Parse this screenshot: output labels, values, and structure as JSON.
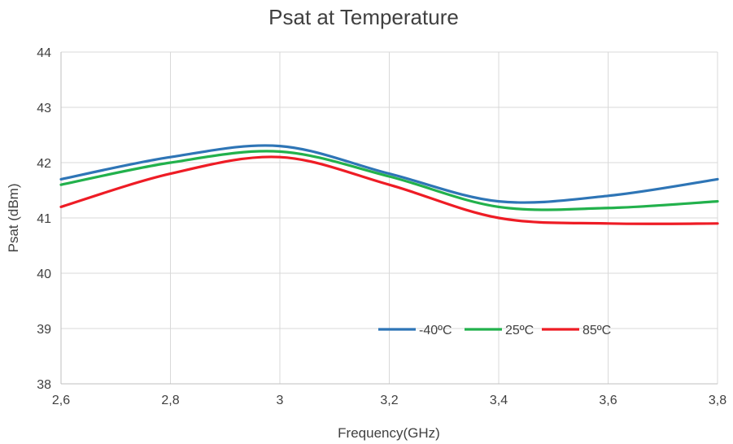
{
  "chart_data": {
    "type": "line",
    "title": "Psat at Temperature",
    "xlabel": "Frequency(GHz)",
    "ylabel": "Psat (dBm)",
    "xlim": [
      2.6,
      3.8
    ],
    "ylim": [
      38,
      44
    ],
    "x_ticks": [
      "2,6",
      "2,8",
      "3",
      "3,2",
      "3,4",
      "3,6",
      "3,8"
    ],
    "y_ticks": [
      "38",
      "39",
      "40",
      "41",
      "42",
      "43",
      "44"
    ],
    "grid": true,
    "legend_position": "lower-right",
    "x": [
      2.6,
      2.8,
      3.0,
      3.2,
      3.4,
      3.6,
      3.8
    ],
    "series": [
      {
        "name": "-40ºC",
        "color": "#2e75b6",
        "values": [
          41.7,
          42.1,
          42.3,
          41.8,
          41.3,
          41.4,
          41.7
        ]
      },
      {
        "name": "25ºC",
        "color": "#22b14c",
        "values": [
          41.6,
          42.0,
          42.2,
          41.75,
          41.2,
          41.18,
          41.3
        ]
      },
      {
        "name": "85ºC",
        "color": "#ee1c25",
        "values": [
          41.2,
          41.8,
          42.1,
          41.6,
          41.0,
          40.9,
          40.9
        ]
      }
    ]
  }
}
